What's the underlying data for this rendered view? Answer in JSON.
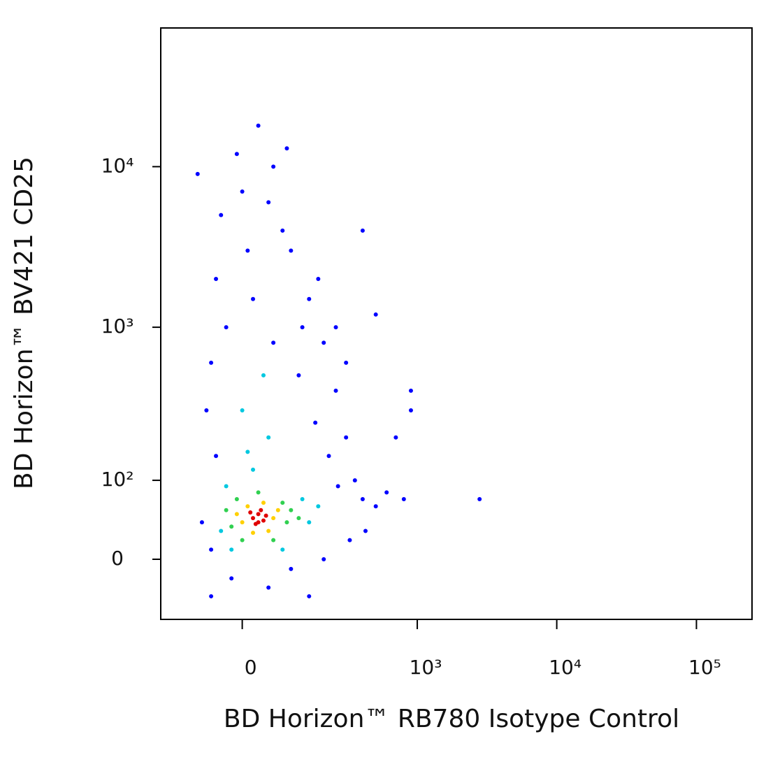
{
  "chart_data": {
    "type": "scatter",
    "x_label": "BD Horizon™ RB780 Isotype Control",
    "y_label": "BD Horizon™ BV421 CD25",
    "xscale": "biexponential",
    "yscale": "biexponential",
    "xlim": [
      -200,
      250000
    ],
    "ylim": [
      -70,
      73000
    ],
    "xticks": [
      0,
      {
        "value": 1000,
        "label": "10³"
      },
      {
        "value": 10000,
        "label": "10⁴"
      },
      {
        "value": 100000,
        "label": "10⁵"
      }
    ],
    "yticks": [
      0,
      {
        "value": 100,
        "label": "10²"
      },
      {
        "value": 1000,
        "label": "10³"
      },
      {
        "value": 10000,
        "label": "10⁴"
      }
    ],
    "series": [
      {
        "color": "#0000ff",
        "x": [
          -80,
          -60,
          -50,
          -40,
          0,
          50,
          100,
          150,
          200,
          250,
          300,
          350,
          400,
          500,
          600,
          800,
          2800,
          700,
          900,
          -70,
          -30,
          20,
          60,
          120,
          170,
          220,
          260,
          -60,
          -20,
          50,
          100,
          200,
          -50,
          10,
          80,
          130,
          180,
          -10,
          60,
          -90,
          90,
          400,
          500,
          30,
          900,
          250,
          300,
          -60,
          150,
          320,
          420
        ],
        "y": [
          40,
          600,
          2000,
          5000,
          7000,
          6000,
          3000,
          1500,
          800,
          400,
          200,
          100,
          70,
          60,
          80,
          70,
          70,
          200,
          400,
          300,
          1000,
          1500,
          800,
          500,
          250,
          150,
          90,
          10,
          -20,
          -30,
          -10,
          0,
          150,
          3000,
          4000,
          1000,
          2000,
          12000,
          10000,
          9000,
          13000,
          4000,
          1200,
          18000,
          300,
          1000,
          600,
          -40,
          -40,
          20,
          30
        ]
      },
      {
        "color": "#00c8e0",
        "x": [
          -40,
          150,
          130,
          -20,
          80,
          20,
          50,
          0,
          40,
          -30,
          180,
          10
        ],
        "y": [
          30,
          40,
          70,
          10,
          10,
          120,
          200,
          300,
          500,
          90,
          60,
          160
        ]
      },
      {
        "color": "#30d050",
        "x": [
          -20,
          90,
          80,
          0,
          60,
          -30,
          100,
          30,
          -10,
          120
        ],
        "y": [
          35,
          40,
          65,
          20,
          20,
          55,
          55,
          80,
          70,
          45
        ]
      },
      {
        "color": "#ffd000",
        "x": [
          0,
          60,
          10,
          50,
          70,
          20,
          40,
          -10
        ],
        "y": [
          40,
          45,
          60,
          30,
          55,
          28,
          65,
          50
        ]
      },
      {
        "color": "#e00000",
        "x": [
          20,
          30,
          40,
          25,
          35,
          45,
          15,
          30
        ],
        "y": [
          45,
          50,
          42,
          38,
          55,
          48,
          52,
          40
        ]
      }
    ]
  }
}
